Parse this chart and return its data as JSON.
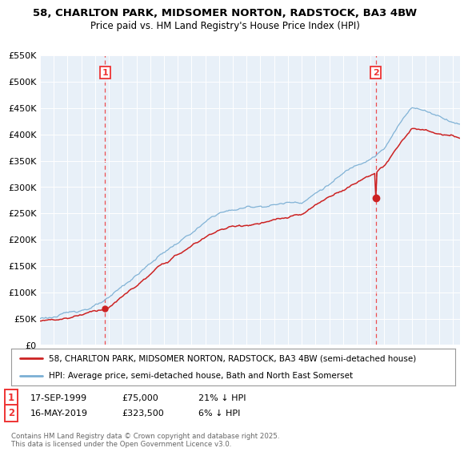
{
  "title_line1": "58, CHARLTON PARK, MIDSOMER NORTON, RADSTOCK, BA3 4BW",
  "title_line2": "Price paid vs. HM Land Registry's House Price Index (HPI)",
  "legend_label1": "58, CHARLTON PARK, MIDSOMER NORTON, RADSTOCK, BA3 4BW (semi-detached house)",
  "legend_label2": "HPI: Average price, semi-detached house, Bath and North East Somerset",
  "sale1_date": "17-SEP-1999",
  "sale1_price": "£75,000",
  "sale1_hpi": "21% ↓ HPI",
  "sale2_date": "16-MAY-2019",
  "sale2_price": "£323,500",
  "sale2_hpi": "6% ↓ HPI",
  "footer": "Contains HM Land Registry data © Crown copyright and database right 2025.\nThis data is licensed under the Open Government Licence v3.0.",
  "hpi_color": "#7bafd4",
  "price_color": "#cc2222",
  "vline_color": "#ee3333",
  "sale1_year": 1999.72,
  "sale1_value": 75000,
  "sale2_year": 2019.37,
  "sale2_value": 323500,
  "xmin": 1995,
  "xmax": 2025.5,
  "ymax": 550000,
  "ystep": 50000
}
